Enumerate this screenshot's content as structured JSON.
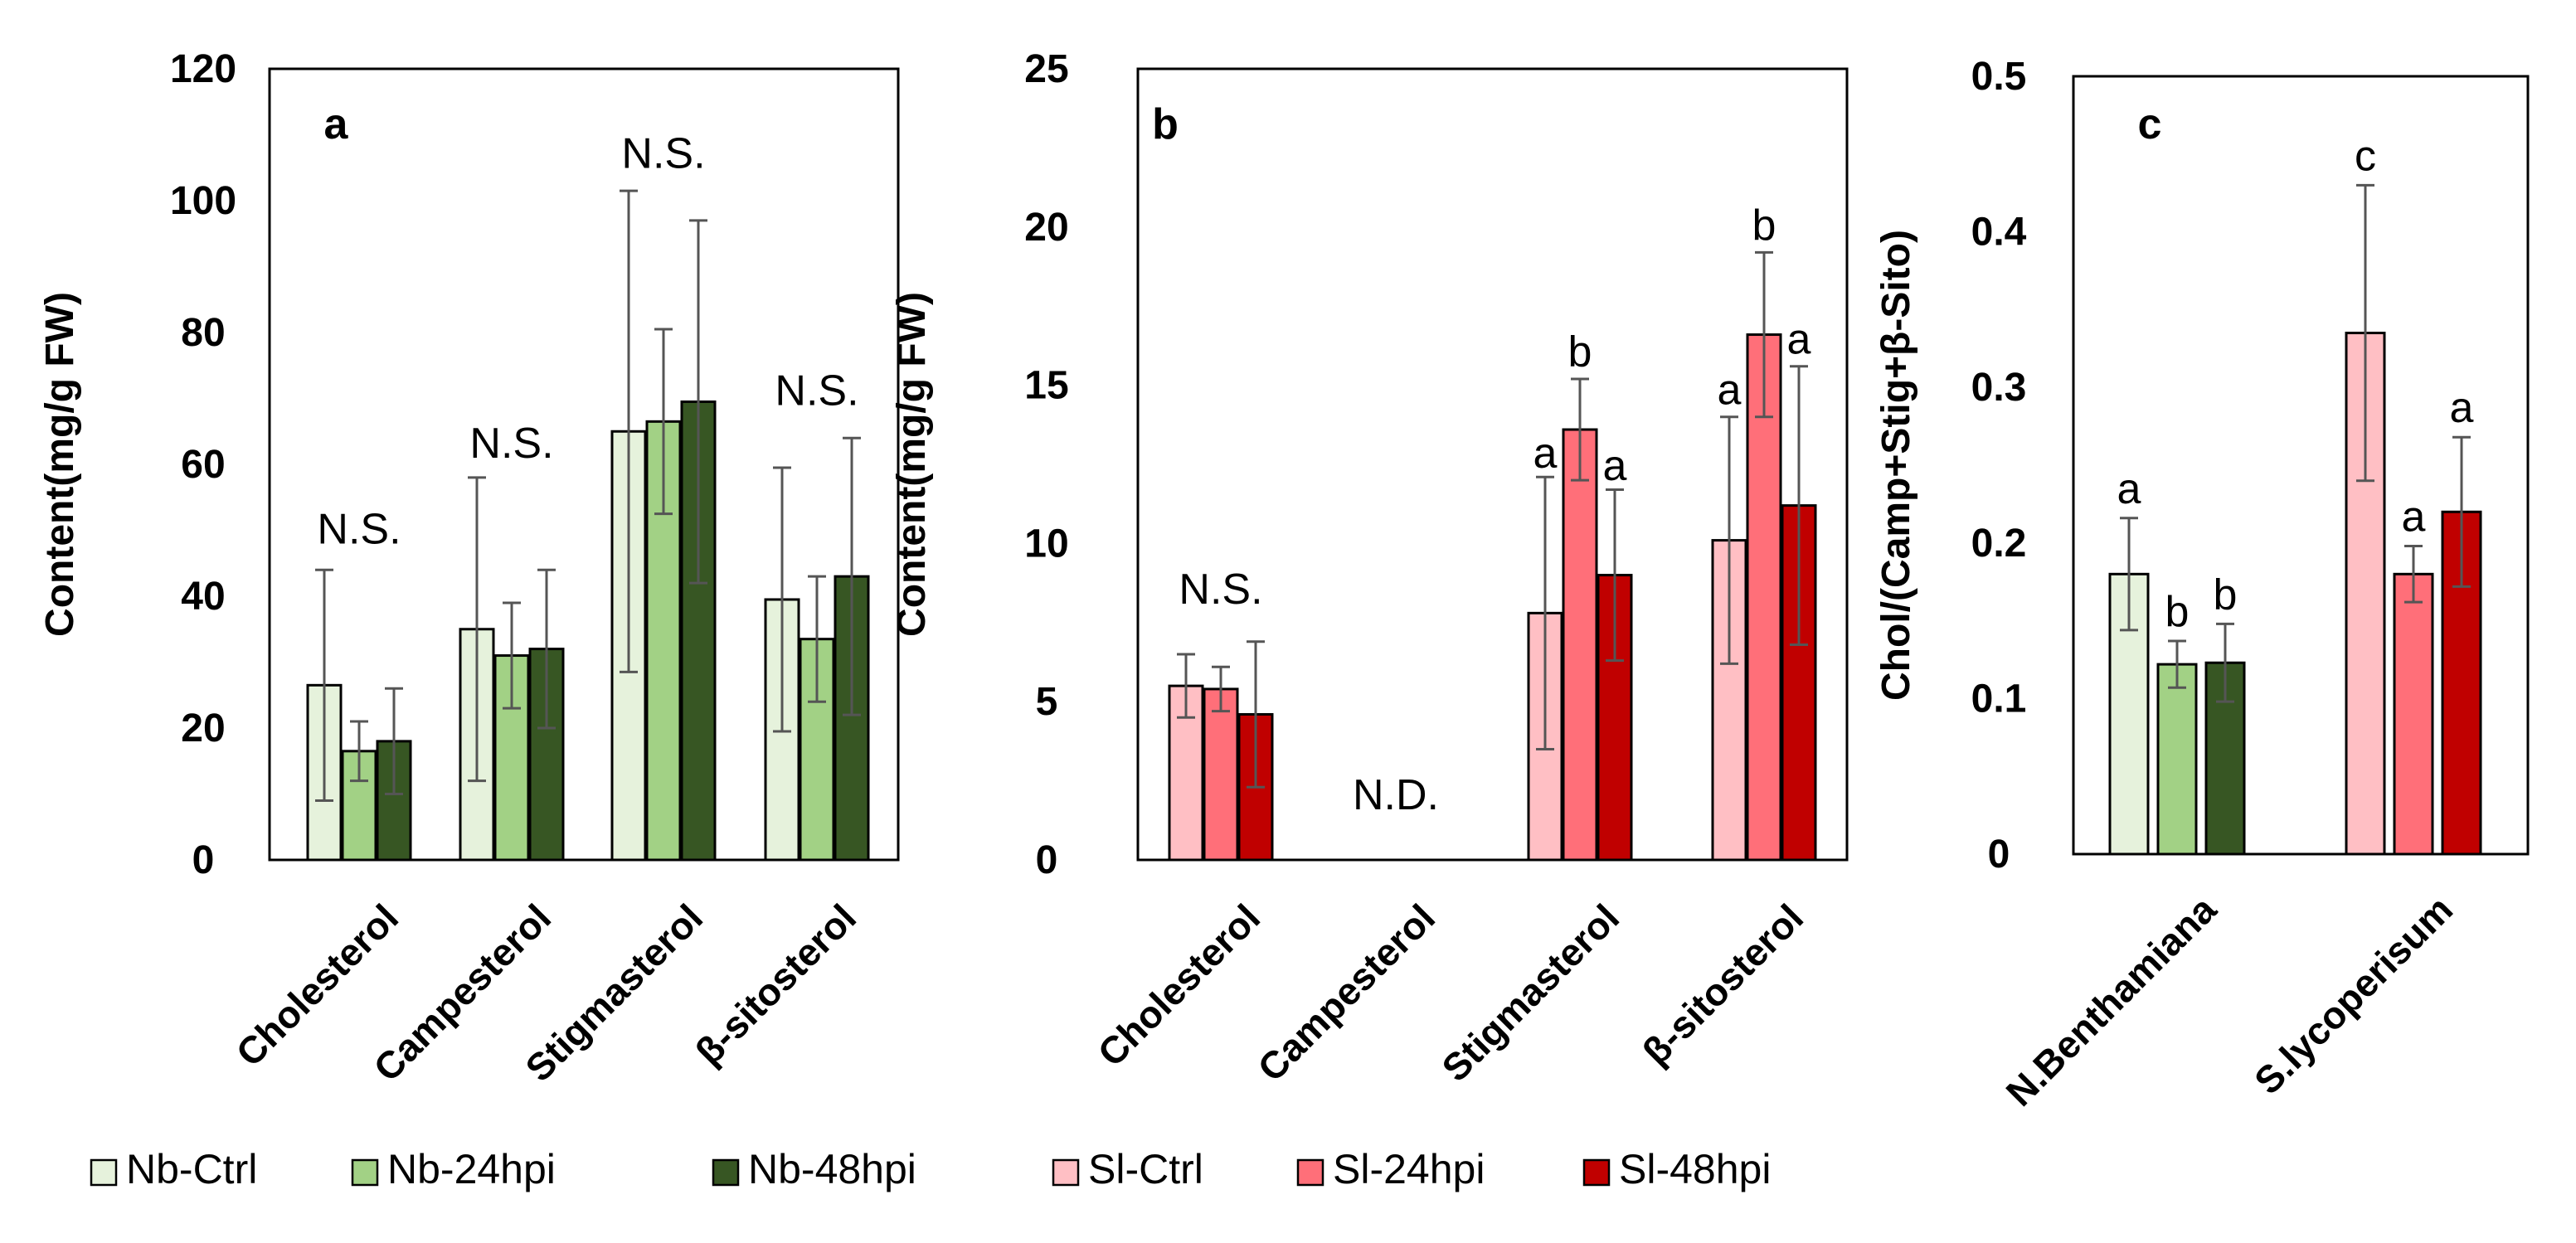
{
  "legend_groups": [
    {
      "entries": [
        {
          "label": "Nb-Ctrl",
          "color": "#e6f2dc"
        },
        {
          "label": "Nb-24hpi",
          "color": "#a2d185"
        },
        {
          "label": "Nb-48hpi",
          "color": "#375623"
        }
      ]
    },
    {
      "entries": [
        {
          "label": "Sl-Ctrl",
          "color": "#ffbfc4"
        },
        {
          "label": "Sl-24hpi",
          "color": "#ff6f79"
        },
        {
          "label": "Sl-48hpi",
          "color": "#c00000"
        }
      ]
    }
  ],
  "chart_data": [
    {
      "type": "bar",
      "panel_label": "a",
      "ylabel": "Content(mg/g FW)",
      "ylim": [
        0,
        120
      ],
      "yticks": [
        "0",
        "20",
        "40",
        "60",
        "80",
        "100",
        "120"
      ],
      "categories": [
        "Cholesterol",
        "Campesterol",
        "Stigmasterol",
        "β-sitosterol"
      ],
      "series": [
        {
          "name": "Nb-Ctrl",
          "color": "#e6f2dc",
          "values": [
            26.5,
            35,
            65,
            39.5
          ],
          "errors": [
            17.5,
            23,
            36.5,
            20
          ]
        },
        {
          "name": "Nb-24hpi",
          "color": "#a2d185",
          "values": [
            16.5,
            31,
            66.5,
            33.5
          ],
          "errors": [
            4.5,
            8,
            14,
            9.5
          ]
        },
        {
          "name": "Nb-48hpi",
          "color": "#375623",
          "values": [
            18,
            32,
            69.5,
            43
          ],
          "errors": [
            8,
            12,
            27.5,
            21
          ]
        }
      ],
      "annotations": [
        {
          "category_index": 0,
          "text": "N.S.",
          "y": 48
        },
        {
          "category_index": 1,
          "text": "N.S.",
          "y": 61
        },
        {
          "category_index": 2,
          "text": "N.S.",
          "y": 105
        },
        {
          "category_index": 3,
          "text": "N.S.",
          "y": 69
        }
      ]
    },
    {
      "type": "bar",
      "panel_label": "b",
      "ylabel": "Content(mg/g FW)",
      "ylim": [
        0,
        25
      ],
      "yticks": [
        "0",
        "5",
        "10",
        "15",
        "20",
        "25"
      ],
      "categories": [
        "Cholesterol",
        "Campesterol",
        "Stigmasterol",
        "β-sitosterol"
      ],
      "series": [
        {
          "name": "Sl-Ctrl",
          "color": "#ffbfc4",
          "values": [
            5.5,
            null,
            7.8,
            10.1
          ],
          "errors": [
            1,
            null,
            4.3,
            3.9
          ]
        },
        {
          "name": "Sl-24hpi",
          "color": "#ff6f79",
          "values": [
            5.4,
            null,
            13.6,
            16.6
          ],
          "errors": [
            0.7,
            null,
            1.6,
            2.6
          ]
        },
        {
          "name": "Sl-48hpi",
          "color": "#c00000",
          "values": [
            4.6,
            null,
            9,
            11.2
          ],
          "errors": [
            2.3,
            null,
            2.7,
            4.4
          ]
        }
      ],
      "annotations": [
        {
          "category_index": 0,
          "text": "N.S.",
          "y": 8.1
        },
        {
          "category_index": 1,
          "text": "N.D.",
          "y": 1.6
        },
        {
          "category_index": 2,
          "series_index": 0,
          "text": "a",
          "y": 12.4
        },
        {
          "category_index": 2,
          "series_index": 1,
          "text": "b",
          "y": 15.6
        },
        {
          "category_index": 2,
          "series_index": 2,
          "text": "a",
          "y": 12.0
        },
        {
          "category_index": 3,
          "series_index": 0,
          "text": "a",
          "y": 14.4
        },
        {
          "category_index": 3,
          "series_index": 1,
          "text": "b",
          "y": 19.6
        },
        {
          "category_index": 3,
          "series_index": 2,
          "text": "a",
          "y": 16.0
        }
      ]
    },
    {
      "type": "bar",
      "panel_label": "c",
      "ylabel": "Chol/(Camp+Stig+β-Sito)",
      "ylim": [
        0,
        0.5
      ],
      "yticks": [
        "0",
        "0.1",
        "0.2",
        "0.3",
        "0.4",
        "0.5"
      ],
      "categories": [
        "N.Benthamiana",
        "S.lycoperisum"
      ],
      "groups": [
        {
          "category": "N.Benthamiana",
          "bars": [
            {
              "name": "Nb-Ctrl",
              "color": "#e6f2dc",
              "value": 0.18,
              "error": 0.036,
              "letter": "a"
            },
            {
              "name": "Nb-24hpi",
              "color": "#a2d185",
              "value": 0.122,
              "error": 0.015,
              "letter": "b"
            },
            {
              "name": "Nb-48hpi",
              "color": "#375623",
              "value": 0.123,
              "error": 0.025,
              "letter": "b"
            }
          ]
        },
        {
          "category": "S.lycoperisum",
          "bars": [
            {
              "name": "Sl-Ctrl",
              "color": "#ffbfc4",
              "value": 0.335,
              "error": 0.095,
              "letter": "c"
            },
            {
              "name": "Sl-24hpi",
              "color": "#ff6f79",
              "value": 0.18,
              "error": 0.018,
              "letter": "a"
            },
            {
              "name": "Sl-48hpi",
              "color": "#c00000",
              "value": 0.22,
              "error": 0.048,
              "letter": "a"
            }
          ]
        }
      ]
    }
  ]
}
